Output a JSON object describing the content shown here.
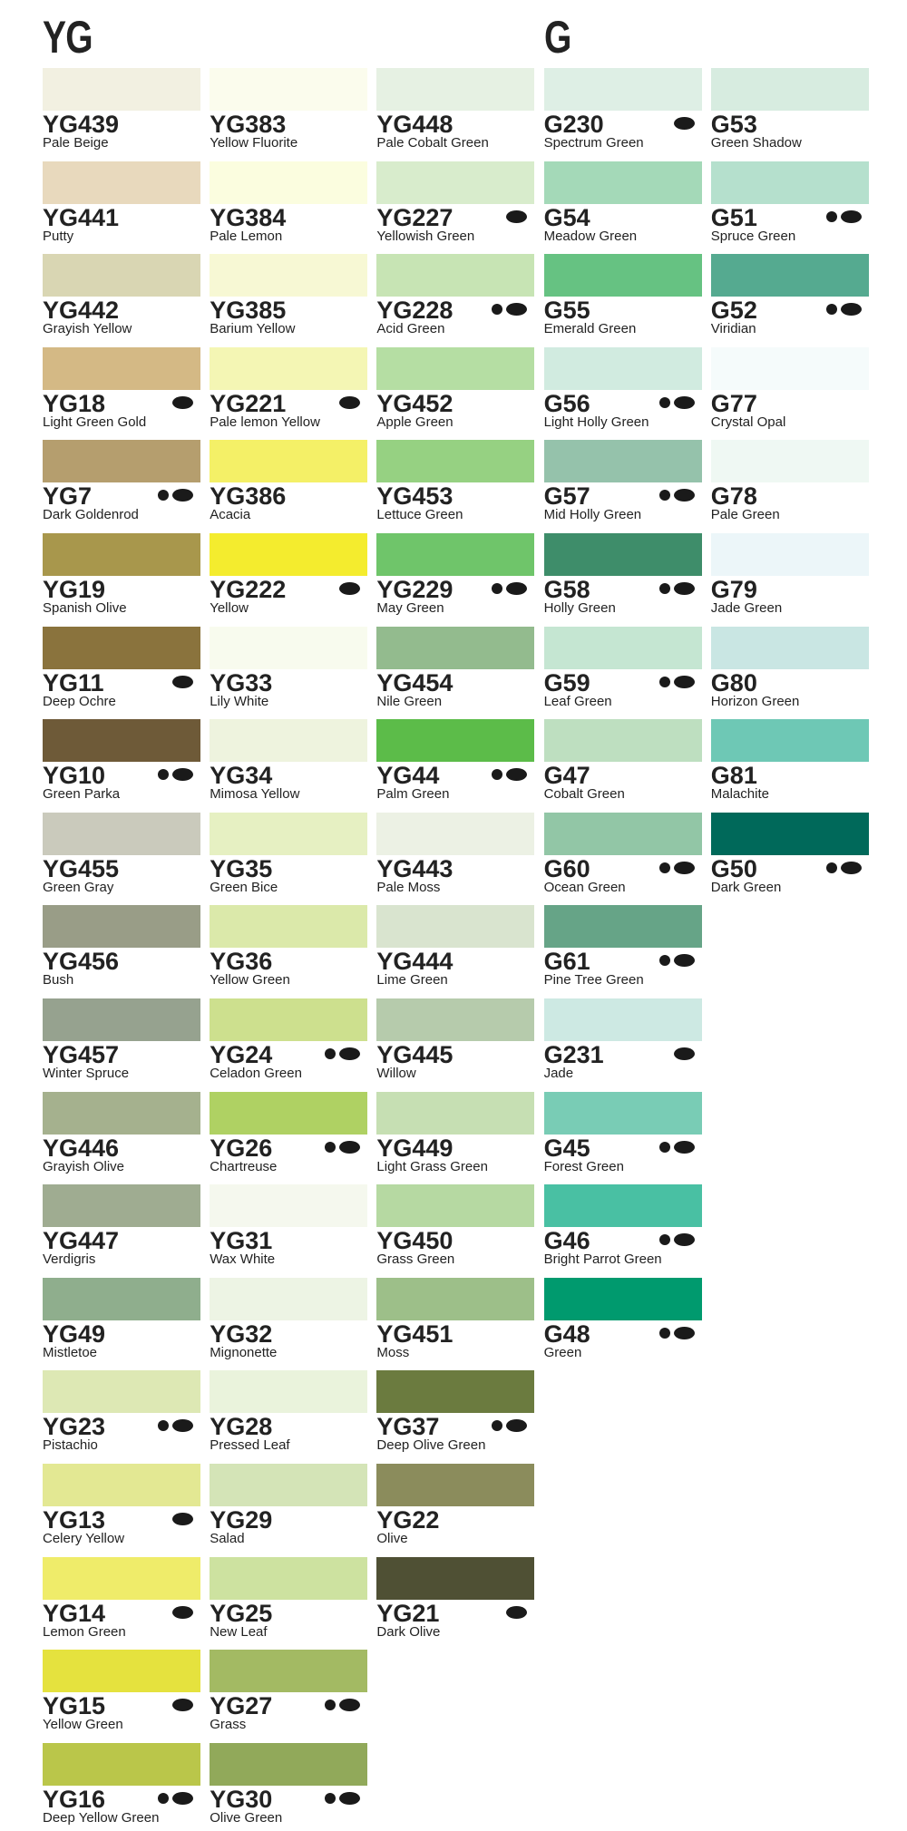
{
  "groups": [
    {
      "title": "YG",
      "columns": [
        [
          {
            "code": "YG439",
            "name": "Pale Beige",
            "color": "#f2f0e1",
            "dots": 0
          },
          {
            "code": "YG441",
            "name": "Putty",
            "color": "#e8d9bd",
            "dots": 0
          },
          {
            "code": "YG442",
            "name": "Grayish Yellow",
            "color": "#d9d6b3",
            "dots": 0
          },
          {
            "code": "YG18",
            "name": "Light Green Gold",
            "color": "#d4b985",
            "dots": 1
          },
          {
            "code": "YG7",
            "name": "Dark Goldenrod",
            "color": "#b59e6e",
            "dots": 2
          },
          {
            "code": "YG19",
            "name": "Spanish Olive",
            "color": "#a8974c",
            "dots": 0
          },
          {
            "code": "YG11",
            "name": "Deep Ochre",
            "color": "#8a733d",
            "dots": 1
          },
          {
            "code": "YG10",
            "name": "Green Parka",
            "color": "#6e5a38",
            "dots": 2
          },
          {
            "code": "YG455",
            "name": "Green Gray",
            "color": "#cacabc",
            "dots": 0
          },
          {
            "code": "YG456",
            "name": "Bush",
            "color": "#999d87",
            "dots": 0
          },
          {
            "code": "YG457",
            "name": "Winter Spruce",
            "color": "#96a28f",
            "dots": 0
          },
          {
            "code": "YG446",
            "name": "Grayish Olive",
            "color": "#a5b18e",
            "dots": 0
          },
          {
            "code": "YG447",
            "name": "Verdigris",
            "color": "#9fac91",
            "dots": 0
          },
          {
            "code": "YG49",
            "name": "Mistletoe",
            "color": "#8fae8d",
            "dots": 0
          },
          {
            "code": "YG23",
            "name": "Pistachio",
            "color": "#dde8b4",
            "dots": 2
          },
          {
            "code": "YG13",
            "name": "Celery Yellow",
            "color": "#e3e893",
            "dots": 1
          },
          {
            "code": "YG14",
            "name": "Lemon Green",
            "color": "#efec6a",
            "dots": 1
          },
          {
            "code": "YG15",
            "name": "Yellow Green",
            "color": "#e5e23e",
            "dots": 1
          },
          {
            "code": "YG16",
            "name": "Deep Yellow Green",
            "color": "#bac64a",
            "dots": 2
          }
        ],
        [
          {
            "code": "YG383",
            "name": "Yellow Fluorite",
            "color": "#fbfced",
            "dots": 0
          },
          {
            "code": "YG384",
            "name": "Pale Lemon",
            "color": "#fbfddf",
            "dots": 0
          },
          {
            "code": "YG385",
            "name": "Barium Yellow",
            "color": "#f7f8d4",
            "dots": 0
          },
          {
            "code": "YG221",
            "name": "Pale lemon Yellow",
            "color": "#f4f6b4",
            "dots": 1
          },
          {
            "code": "YG386",
            "name": "Acacia",
            "color": "#f4f067",
            "dots": 0
          },
          {
            "code": "YG222",
            "name": "Yellow",
            "color": "#f4ec2e",
            "dots": 1
          },
          {
            "code": "YG33",
            "name": "Lily White",
            "color": "#f8fbee",
            "dots": 0
          },
          {
            "code": "YG34",
            "name": "Mimosa Yellow",
            "color": "#eef3de",
            "dots": 0
          },
          {
            "code": "YG35",
            "name": "Green Bice",
            "color": "#e6f0c2",
            "dots": 0
          },
          {
            "code": "YG36",
            "name": "Yellow Green",
            "color": "#dbe9aa",
            "dots": 0
          },
          {
            "code": "YG24",
            "name": "Celadon Green",
            "color": "#cde08e",
            "dots": 2
          },
          {
            "code": "YG26",
            "name": "Chartreuse",
            "color": "#afd163",
            "dots": 2
          },
          {
            "code": "YG31",
            "name": "Wax White",
            "color": "#f5f8ee",
            "dots": 0
          },
          {
            "code": "YG32",
            "name": "Mignonette",
            "color": "#edf4e4",
            "dots": 0
          },
          {
            "code": "YG28",
            "name": "Pressed Leaf",
            "color": "#eaf3dc",
            "dots": 0
          },
          {
            "code": "YG29",
            "name": "Salad",
            "color": "#d4e4b7",
            "dots": 0
          },
          {
            "code": "YG25",
            "name": "New Leaf",
            "color": "#cde2a0",
            "dots": 0
          },
          {
            "code": "YG27",
            "name": "Grass",
            "color": "#a3ba63",
            "dots": 2
          },
          {
            "code": "YG30",
            "name": "Olive Green",
            "color": "#91a95a",
            "dots": 2
          }
        ],
        [
          {
            "code": "YG448",
            "name": "Pale Cobalt Green",
            "color": "#e6f1e3",
            "dots": 0
          },
          {
            "code": "YG227",
            "name": "Yellowish Green",
            "color": "#d8eccc",
            "dots": 1
          },
          {
            "code": "YG228",
            "name": "Acid Green",
            "color": "#c7e4b4",
            "dots": 2
          },
          {
            "code": "YG452",
            "name": "Apple Green",
            "color": "#b5dea3",
            "dots": 0
          },
          {
            "code": "YG453",
            "name": "Lettuce Green",
            "color": "#96d182",
            "dots": 0
          },
          {
            "code": "YG229",
            "name": "May Green",
            "color": "#6fc56a",
            "dots": 2
          },
          {
            "code": "YG454",
            "name": "Nile Green",
            "color": "#93bb8e",
            "dots": 0
          },
          {
            "code": "YG44",
            "name": "Palm Green",
            "color": "#5cbc49",
            "dots": 2
          },
          {
            "code": "YG443",
            "name": "Pale Moss",
            "color": "#ecf1e4",
            "dots": 0
          },
          {
            "code": "YG444",
            "name": "Lime Green",
            "color": "#d9e4cf",
            "dots": 0
          },
          {
            "code": "YG445",
            "name": "Willow",
            "color": "#b6cbac",
            "dots": 0
          },
          {
            "code": "YG449",
            "name": "Light Grass Green",
            "color": "#c6dfb3",
            "dots": 0
          },
          {
            "code": "YG450",
            "name": "Grass Green",
            "color": "#b6d9a2",
            "dots": 0
          },
          {
            "code": "YG451",
            "name": "Moss",
            "color": "#9dbf89",
            "dots": 0
          },
          {
            "code": "YG37",
            "name": "Deep Olive Green",
            "color": "#6b7b3f",
            "dots": 2
          },
          {
            "code": "YG22",
            "name": "Olive",
            "color": "#8b8c5c",
            "dots": 0
          },
          {
            "code": "YG21",
            "name": "Dark Olive",
            "color": "#4f5034",
            "dots": 1
          }
        ]
      ]
    },
    {
      "title": "G",
      "columns": [
        [
          {
            "code": "G230",
            "name": "Spectrum Green",
            "color": "#deefe5",
            "dots": 1
          },
          {
            "code": "G54",
            "name": "Meadow Green",
            "color": "#a4d9b8",
            "dots": 0
          },
          {
            "code": "G55",
            "name": "Emerald Green",
            "color": "#66c282",
            "dots": 0
          },
          {
            "code": "G56",
            "name": "Light Holly Green",
            "color": "#d1ebe0",
            "dots": 2
          },
          {
            "code": "G57",
            "name": "Mid Holly Green",
            "color": "#95c2ab",
            "dots": 2
          },
          {
            "code": "G58",
            "name": "Holly Green",
            "color": "#3e8d6a",
            "dots": 2
          },
          {
            "code": "G59",
            "name": "Leaf Green",
            "color": "#c5e6d2",
            "dots": 2
          },
          {
            "code": "G47",
            "name": "Cobalt Green",
            "color": "#bedfc0",
            "dots": 0
          },
          {
            "code": "G60",
            "name": "Ocean Green",
            "color": "#92c6a6",
            "dots": 2
          },
          {
            "code": "G61",
            "name": "Pine Tree Green",
            "color": "#66a487",
            "dots": 2
          },
          {
            "code": "G231",
            "name": "Jade",
            "color": "#cde9e3",
            "dots": 1
          },
          {
            "code": "G45",
            "name": "Forest Green",
            "color": "#79ccb5",
            "dots": 2
          },
          {
            "code": "G46",
            "name": "Bright Parrot Green",
            "color": "#49c0a3",
            "dots": 2
          },
          {
            "code": "G48",
            "name": "Green",
            "color": "#009a6e",
            "dots": 2
          }
        ],
        [
          {
            "code": "G53",
            "name": "Green Shadow",
            "color": "#d7ece0",
            "dots": 0
          },
          {
            "code": "G51",
            "name": "Spruce Green",
            "color": "#b5e0cd",
            "dots": 2
          },
          {
            "code": "G52",
            "name": "Viridian",
            "color": "#55aa90",
            "dots": 2
          },
          {
            "code": "G77",
            "name": "Crystal Opal",
            "color": "#f5fbfb",
            "dots": 0
          },
          {
            "code": "G78",
            "name": "Pale Green",
            "color": "#eff8f3",
            "dots": 0
          },
          {
            "code": "G79",
            "name": "Jade Green",
            "color": "#ecf6f9",
            "dots": 0
          },
          {
            "code": "G80",
            "name": "Horizon Green",
            "color": "#c9e6e3",
            "dots": 0
          },
          {
            "code": "G81",
            "name": "Malachite",
            "color": "#6ec8b5",
            "dots": 0
          },
          {
            "code": "G50",
            "name": "Dark Green",
            "color": "#00695a",
            "dots": 2
          }
        ]
      ]
    }
  ]
}
